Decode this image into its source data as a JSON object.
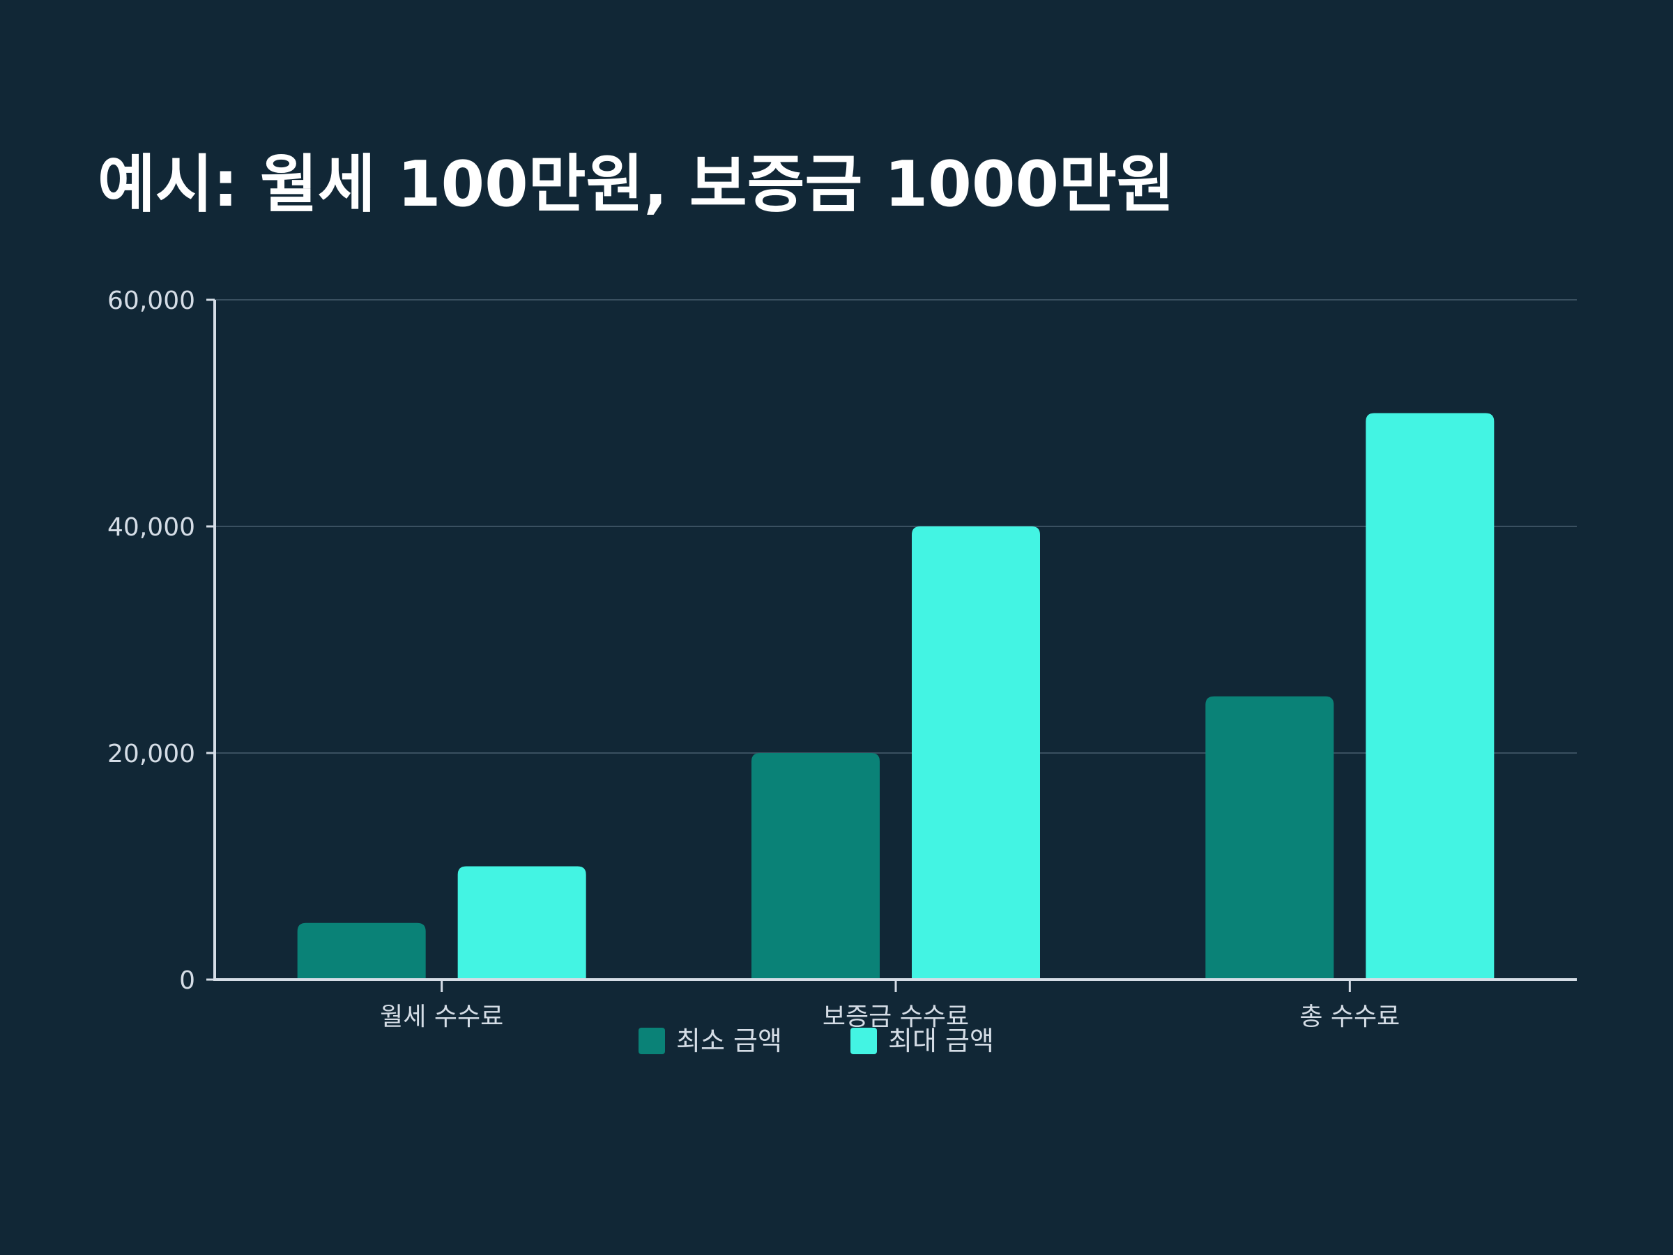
{
  "colors": {
    "background": "#112736",
    "min_series": "#0a8277",
    "max_series": "#43f4e3",
    "axis": "#d5dde6",
    "grid": "#3a5060"
  },
  "chart_data": {
    "type": "bar",
    "title": "예시: 월세 100만원, 보증금 1000만원",
    "xlabel": "",
    "ylabel": "",
    "categories": [
      "월세 수수료",
      "보증금 수수료",
      "총 수수료"
    ],
    "series": [
      {
        "name": "최소 금액",
        "values": [
          5000,
          20000,
          25000
        ]
      },
      {
        "name": "최대 금액",
        "values": [
          10000,
          40000,
          50000
        ]
      }
    ],
    "ylim": [
      0,
      60000
    ],
    "yticks": [
      0,
      20000,
      40000,
      60000
    ],
    "ytick_labels": [
      "0",
      "20,000",
      "40,000",
      "60,000"
    ],
    "grid": true,
    "legend_position": "bottom-center"
  }
}
